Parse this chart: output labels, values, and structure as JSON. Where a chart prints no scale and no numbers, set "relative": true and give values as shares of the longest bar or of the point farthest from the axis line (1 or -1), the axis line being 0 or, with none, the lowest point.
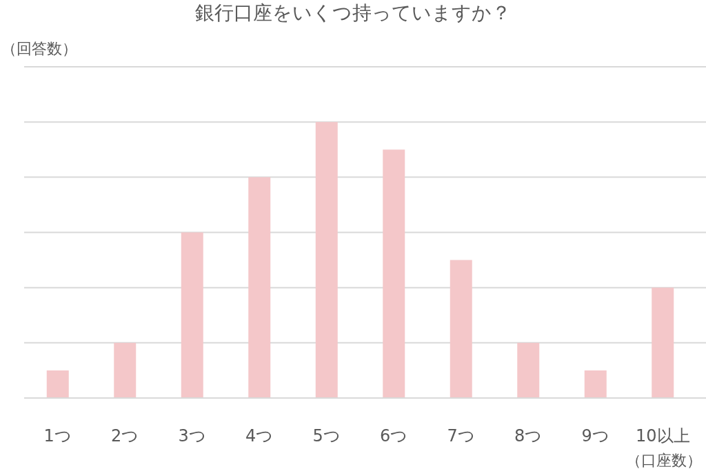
{
  "chart_data": {
    "type": "bar",
    "title": "銀行口座をいくつ持っていますか？",
    "ylabel": "（回答数）",
    "xlabel": "（口座数）",
    "categories": [
      "1つ",
      "2つ",
      "3つ",
      "4つ",
      "5つ",
      "6つ",
      "7つ",
      "8つ",
      "9つ",
      "10以上"
    ],
    "values": [
      0.1,
      0.2,
      0.6,
      0.8,
      1,
      0.9,
      0.5,
      0.2,
      0.1,
      0.4
    ],
    "color": "#f4c7c9",
    "relative": true,
    "grid": true
  }
}
